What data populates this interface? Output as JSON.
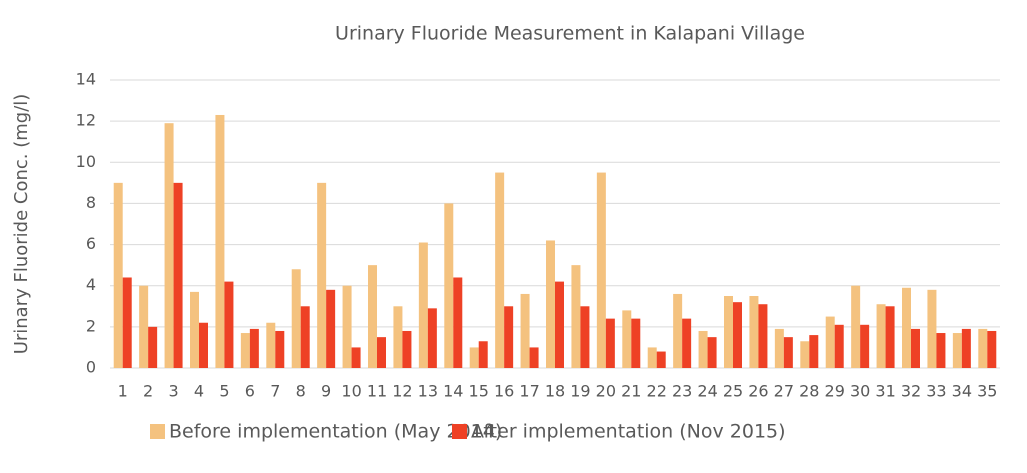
{
  "chart_data": {
    "type": "bar",
    "title": "Urinary Fluoride Measurement in Kalapani Village",
    "y_label": "Urinary Fluoride Conc. (mg/l)",
    "categories": [
      "1",
      "2",
      "3",
      "4",
      "5",
      "6",
      "7",
      "8",
      "9",
      "10",
      "11",
      "12",
      "13",
      "14",
      "15",
      "16",
      "17",
      "18",
      "19",
      "20",
      "21",
      "22",
      "23",
      "24",
      "25",
      "26",
      "27",
      "28",
      "29",
      "30",
      "31",
      "32",
      "33",
      "34",
      "35"
    ],
    "series": [
      {
        "name": "Before implementation (May 2014)",
        "color": "#f4c27f",
        "values": [
          9,
          4,
          11.9,
          3.7,
          12.3,
          1.7,
          2.2,
          4.8,
          9,
          4,
          5,
          3,
          6.1,
          8,
          1,
          9.5,
          3.6,
          6.2,
          5,
          9.5,
          2.8,
          1,
          3.6,
          1.8,
          3.5,
          3.5,
          1.9,
          1.3,
          2.5,
          4,
          3.1,
          3.9,
          3.8,
          1.7,
          1.9
        ]
      },
      {
        "name": "After implementation (Nov 2015)",
        "color": "#ee4125",
        "values": [
          4.4,
          2,
          9,
          2.2,
          4.2,
          1.9,
          1.8,
          3,
          3.8,
          1,
          1.5,
          1.8,
          2.9,
          4.4,
          1.3,
          3,
          1,
          4.2,
          3,
          2.4,
          2.4,
          0.8,
          2.4,
          1.5,
          3.2,
          3.1,
          1.5,
          1.6,
          2.1,
          2.1,
          3,
          1.9,
          1.7,
          1.9,
          1.8
        ]
      }
    ],
    "ylim": [
      0,
      14
    ],
    "yticks": [
      0,
      2,
      4,
      6,
      8,
      10,
      12,
      14
    ],
    "grid": true,
    "legend": "bottom"
  }
}
